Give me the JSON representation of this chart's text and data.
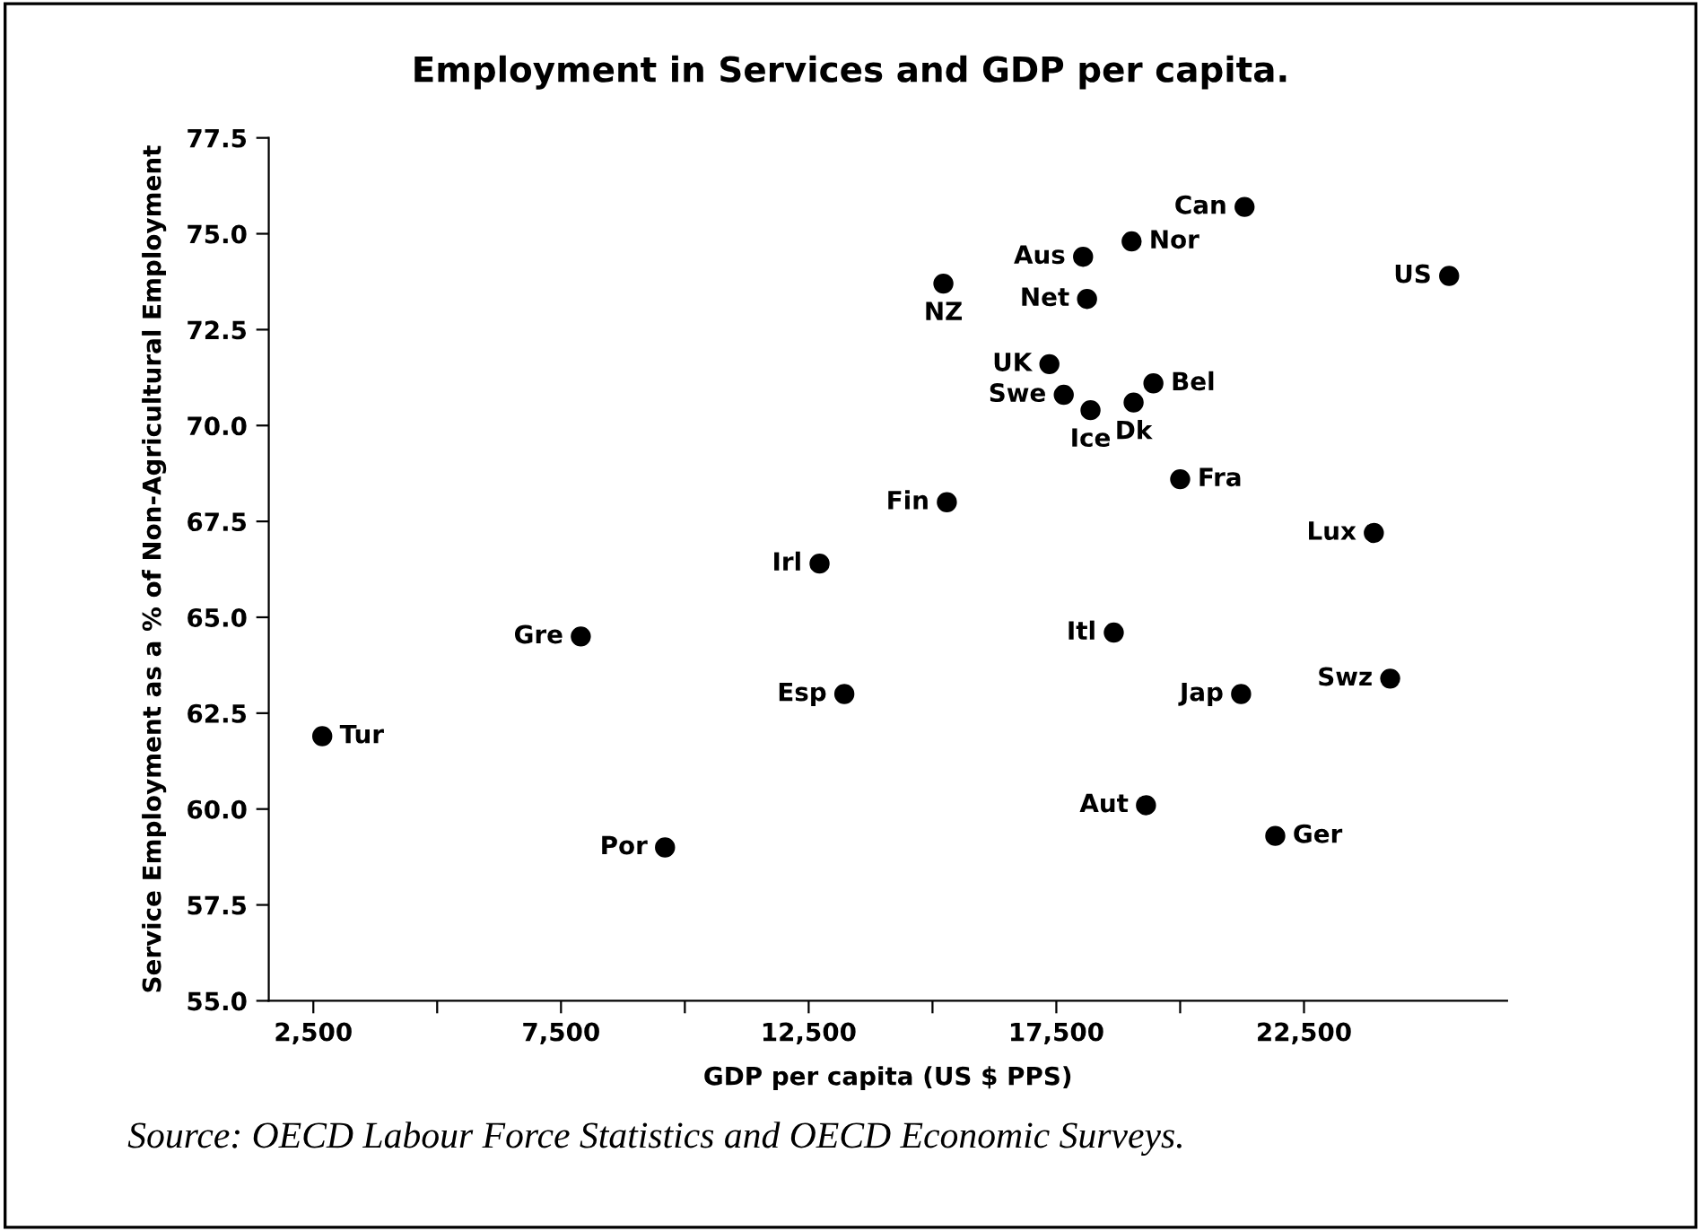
{
  "chart_data": {
    "type": "scatter",
    "title": "Employment in Services and GDP per capita.",
    "xlabel": "GDP per capita (US $ PPS)",
    "ylabel": "Service Employment as a % of Non-Agricultural Employment",
    "xlim": [
      1600,
      26600
    ],
    "xticks": [
      {
        "value": 2500,
        "label": "2,500"
      },
      {
        "value": 5000,
        "label": null
      },
      {
        "value": 7500,
        "label": "7,500"
      },
      {
        "value": 10000,
        "label": null
      },
      {
        "value": 12500,
        "label": "12,500"
      },
      {
        "value": 15000,
        "label": null
      },
      {
        "value": 17500,
        "label": "17,500"
      },
      {
        "value": 20000,
        "label": null
      },
      {
        "value": 22500,
        "label": "22,500"
      }
    ],
    "ylim": [
      55,
      77.5
    ],
    "yticks": [
      {
        "value": 55,
        "label": "55.0"
      },
      {
        "value": 57.5,
        "label": "57.5"
      },
      {
        "value": 60,
        "label": "60.0"
      },
      {
        "value": 62.5,
        "label": "62.5"
      },
      {
        "value": 65,
        "label": "65.0"
      },
      {
        "value": 67.5,
        "label": "67.5"
      },
      {
        "value": 70,
        "label": "70.0"
      },
      {
        "value": 72.5,
        "label": "72.5"
      },
      {
        "value": 75,
        "label": "75.0"
      },
      {
        "value": 77.5,
        "label": "77.5"
      }
    ],
    "grid": false,
    "marker": "circle",
    "series": [
      {
        "color": "#000000",
        "x": [
          2680,
          7900,
          12720,
          13220,
          9600,
          15290,
          15220,
          18040,
          19020,
          21300,
          18120,
          25430,
          17360,
          17650,
          18190,
          19060,
          19460,
          20000,
          23910,
          18660,
          21230,
          24240,
          19310,
          21920
        ],
        "values": [
          61.9,
          64.5,
          66.4,
          63.0,
          59.0,
          68.0,
          73.7,
          74.4,
          74.8,
          75.7,
          73.3,
          73.9,
          71.6,
          70.8,
          70.4,
          70.6,
          71.1,
          68.6,
          67.2,
          64.6,
          63.0,
          63.4,
          60.1,
          59.3
        ]
      }
    ],
    "annotations": [
      {
        "text": "Tur",
        "x": 2680,
        "y": 61.9
      },
      {
        "text": "Gre",
        "x": 7900,
        "y": 64.5
      },
      {
        "text": "Irl",
        "x": 12720,
        "y": 66.4
      },
      {
        "text": "Esp",
        "x": 13220,
        "y": 63.0
      },
      {
        "text": "Por",
        "x": 9600,
        "y": 59.0
      },
      {
        "text": "Fin",
        "x": 15290,
        "y": 68.0
      },
      {
        "text": "NZ",
        "x": 15220,
        "y": 73.7
      },
      {
        "text": "Aus",
        "x": 18040,
        "y": 74.4
      },
      {
        "text": "Nor",
        "x": 19020,
        "y": 74.8
      },
      {
        "text": "Can",
        "x": 21300,
        "y": 75.7
      },
      {
        "text": "Net",
        "x": 18120,
        "y": 73.3
      },
      {
        "text": "US",
        "x": 25430,
        "y": 73.9
      },
      {
        "text": "UK",
        "x": 17360,
        "y": 71.6
      },
      {
        "text": "Swe",
        "x": 17650,
        "y": 70.8
      },
      {
        "text": "Ice",
        "x": 18190,
        "y": 70.4
      },
      {
        "text": "Dk",
        "x": 19060,
        "y": 70.6
      },
      {
        "text": "Bel",
        "x": 19460,
        "y": 71.1
      },
      {
        "text": "Fra",
        "x": 20000,
        "y": 68.6
      },
      {
        "text": "Lux",
        "x": 23910,
        "y": 67.2
      },
      {
        "text": "Itl",
        "x": 18660,
        "y": 64.6
      },
      {
        "text": "Jap",
        "x": 21230,
        "y": 63.0
      },
      {
        "text": "Swz",
        "x": 24240,
        "y": 63.4
      },
      {
        "text": "Aut",
        "x": 19310,
        "y": 60.1
      },
      {
        "text": "Ger",
        "x": 21920,
        "y": 59.3
      },
      "Source: OECD Labour Force Statistics and OECD Economic Surveys."
    ]
  }
}
